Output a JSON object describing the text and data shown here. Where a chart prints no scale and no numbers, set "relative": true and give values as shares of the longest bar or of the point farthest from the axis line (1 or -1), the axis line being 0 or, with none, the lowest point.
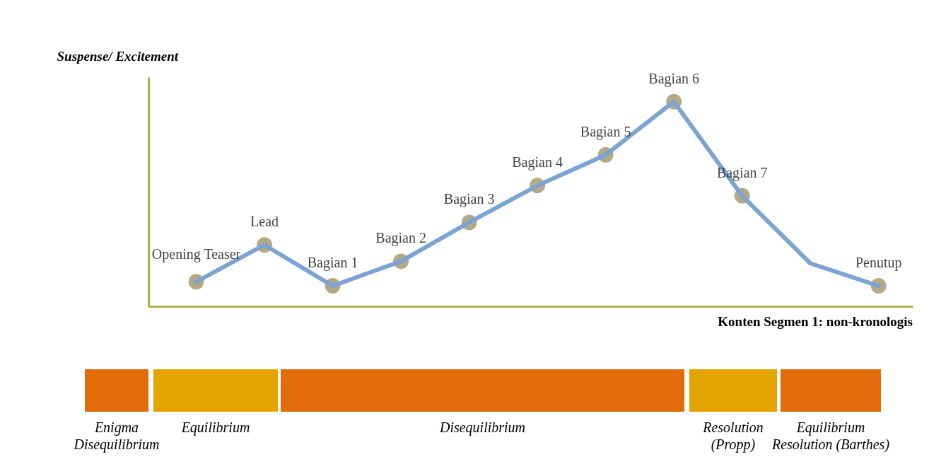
{
  "chart_data": {
    "type": "line",
    "relative": true,
    "ylabel": "Suspense/ Excitement",
    "xlabel": "Konten Segmen 1: non-kronologis",
    "categories": [
      "Opening Teaser",
      "Lead",
      "Bagian 1",
      "Bagian 2",
      "Bagian 3",
      "Bagian 4",
      "Bagian 5",
      "Bagian 6",
      "Bagian 7",
      null,
      "Penutup"
    ],
    "series": [
      {
        "color": "#7ba3d4",
        "values": [
          0.12,
          0.3,
          0.1,
          0.22,
          0.41,
          0.59,
          0.74,
          1,
          0.54,
          0.21,
          0.1
        ]
      }
    ],
    "marker": "circle",
    "annotations": [
      "Enigma\nDisequilibrium",
      "Equilibrium",
      "Disequilibrium",
      "Resolution\n(Propp)",
      "Equilibrium\nResolution (Barthes)"
    ]
  }
}
